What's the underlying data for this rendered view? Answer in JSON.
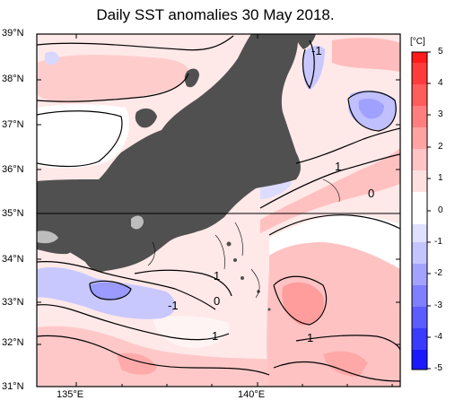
{
  "title": "Daily SST anomalies 30 May 2018.",
  "lat_labels": [
    "39°N",
    "38°N",
    "37°N",
    "36°N",
    "35°N",
    "34°N",
    "33°N",
    "32°N",
    "31°N"
  ],
  "lon_labels": [
    "135°E",
    "140°E"
  ],
  "colorbar": {
    "unit": "[°C]",
    "labels": [
      "5",
      "4",
      "3",
      "2",
      "1",
      "0",
      "-1",
      "-2",
      "-3",
      "-4",
      "-5"
    ],
    "colors": [
      "#ff1a1a",
      "#ff4040",
      "#ff6666",
      "#ff8c8c",
      "#ffb0b0",
      "#ffd6d6",
      "#ffffff",
      "#d6d6ff",
      "#b0b0ff",
      "#8c8cff",
      "#6666ff",
      "#4040ff",
      "#1a1aff"
    ]
  },
  "contour_labels": [
    "-1",
    "1",
    "0",
    "1",
    "-1",
    "0",
    "1",
    "1"
  ],
  "land_color": "#505050"
}
